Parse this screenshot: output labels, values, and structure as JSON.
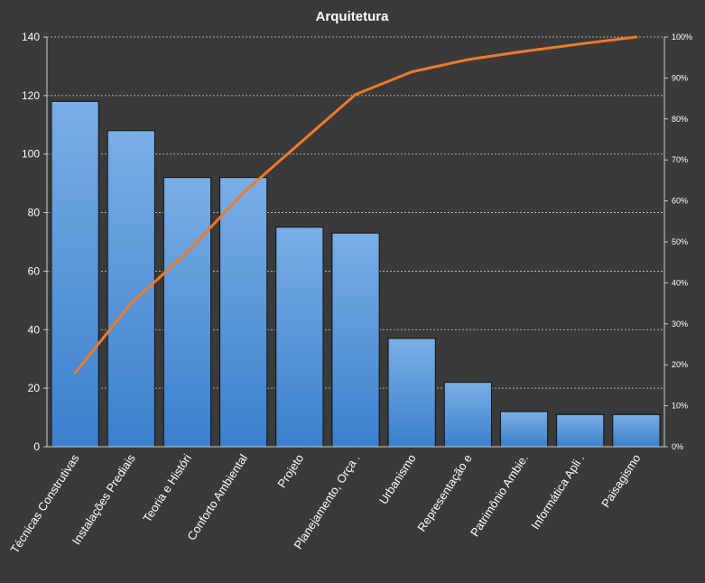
{
  "chart_data": {
    "type": "bar",
    "title": "Arquitetura",
    "categories": [
      "Técnicas Construtivas",
      "Instalações Prediais",
      "Teoria e Históri",
      "Conforto Ambiental",
      "Projeto",
      "Planejamento, Orça .",
      "Urbanismo",
      "Representação e",
      "Patrimônio Ambie.",
      "Informática Apli .",
      "Paisagismo"
    ],
    "series": [
      {
        "type": "bar",
        "axis": "left",
        "values": [
          118,
          108,
          92,
          92,
          75,
          73,
          37,
          22,
          12,
          11,
          11
        ]
      },
      {
        "type": "line",
        "axis": "right",
        "values": [
          18,
          35,
          47.5,
          62,
          74,
          86,
          91.5,
          94.5,
          96.5,
          98.3,
          100
        ]
      }
    ],
    "y_left": {
      "min": 0,
      "max": 140,
      "ticks": [
        "0",
        "20",
        "40",
        "60",
        "80",
        "100",
        "120",
        "140"
      ]
    },
    "y_right": {
      "min": 0,
      "max": 100,
      "ticks": [
        "0%",
        "10%",
        "20%",
        "30%",
        "40%",
        "50%",
        "60%",
        "70%",
        "80%",
        "90%",
        "100%"
      ]
    },
    "grid": true,
    "colors": {
      "bar_top": "#7aaee6",
      "bar_bottom": "#3a80cc",
      "line": "#f07a2a",
      "grid": "#cfcfcf",
      "background": "#3a3a3a"
    }
  }
}
